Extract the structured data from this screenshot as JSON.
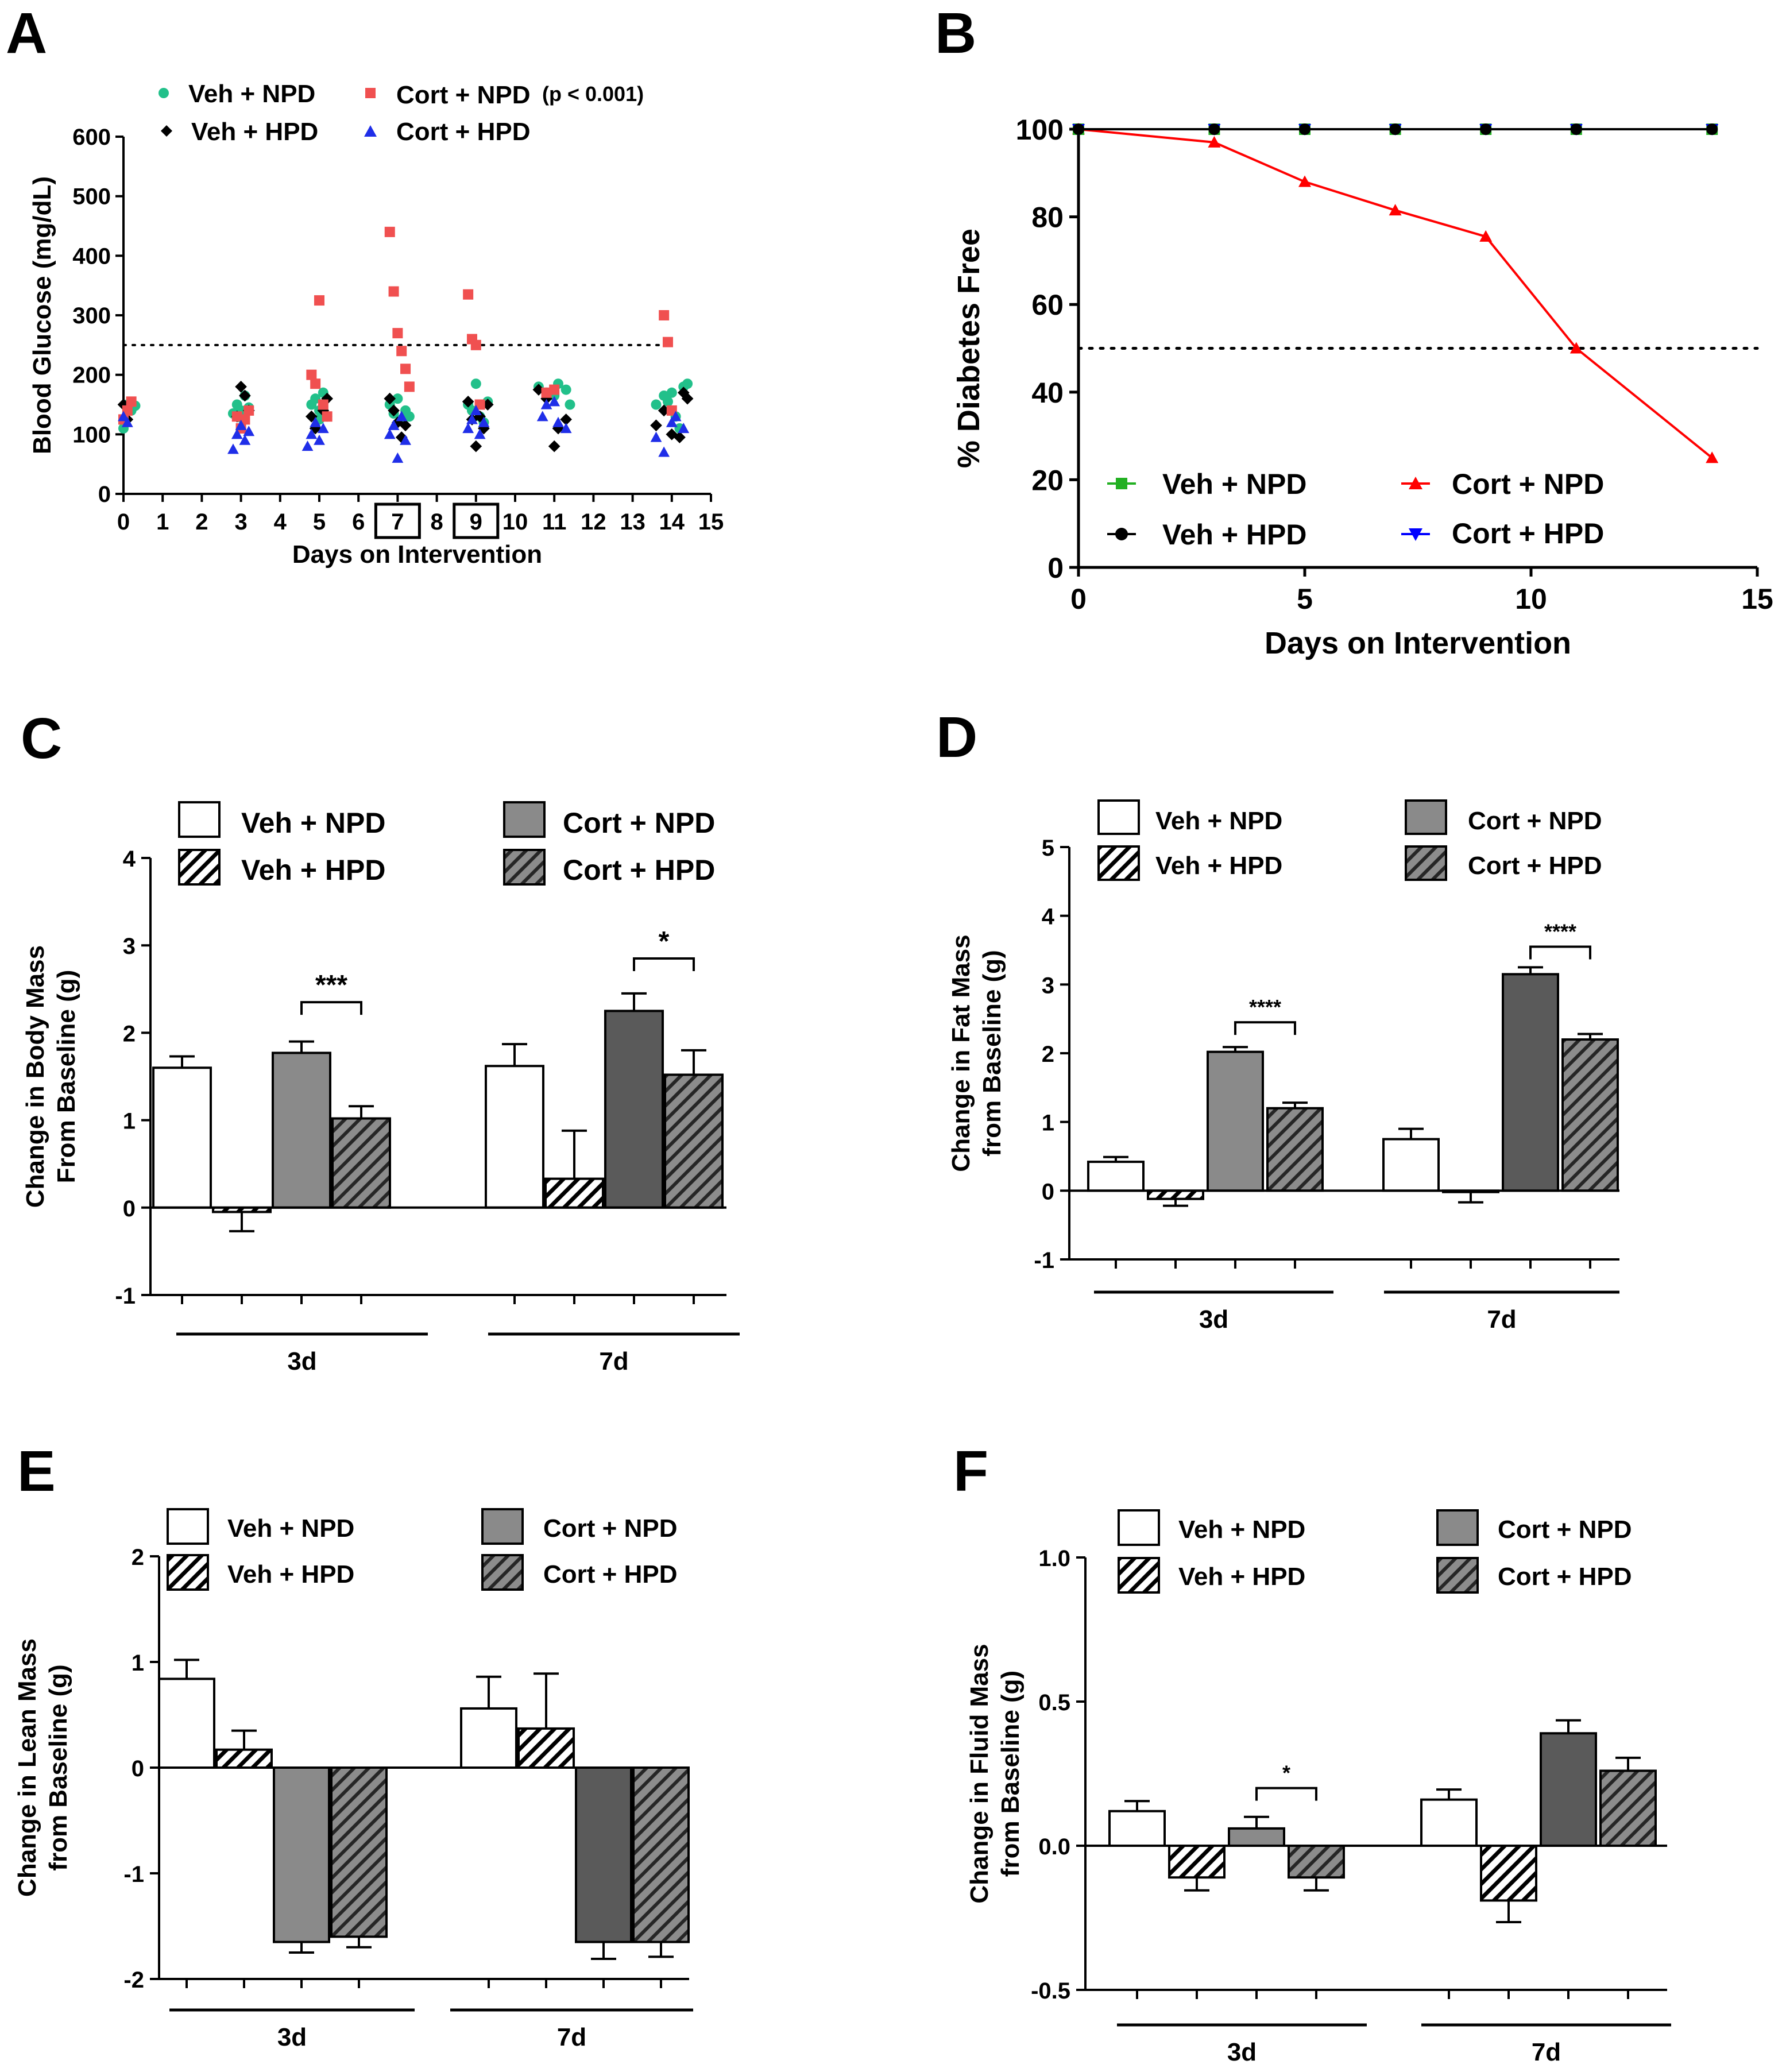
{
  "colors": {
    "veh_npd": "#22c08a",
    "veh_hpd": "#000000",
    "cort_npd": "#f05050",
    "cort_hpd": "#1f2ee8",
    "line_green": "#22b022",
    "line_red": "#ff0000",
    "line_blue": "#0000ff",
    "bar_cort_npd_3d": "#8a8a8a",
    "bar_cort_npd_7d": "#5a5a5a",
    "bar_cort_hpd": "#7a7a7a"
  },
  "legends": {
    "veh_npd": "Veh + NPD",
    "veh_hpd": "Veh + HPD",
    "cort_npd": "Cort + NPD",
    "cort_hpd": "Cort + HPD",
    "p_note": "(p < 0.001)"
  },
  "chart_data": [
    {
      "id": "A",
      "panel_label": "A",
      "type": "scatter",
      "xlabel": "Days on Intervention",
      "ylabel": "Blood Glucose (mg/dL)",
      "xlim": [
        0,
        15
      ],
      "ylim": [
        0,
        600
      ],
      "xticks": [
        "0",
        "1",
        "2",
        "3",
        "4",
        "5",
        "6",
        "7",
        "8",
        "9",
        "10",
        "11",
        "12",
        "13",
        "14",
        "15"
      ],
      "yticks": [
        "0",
        "100",
        "200",
        "300",
        "400",
        "500",
        "600"
      ],
      "boxed_ticks": [
        "7",
        "9"
      ],
      "threshold": 250,
      "series": [
        {
          "name": "Veh + NPD",
          "marker": "circle",
          "points": [
            [
              0,
              110
            ],
            [
              0.05,
              125
            ],
            [
              0.1,
              150
            ],
            [
              0.2,
              140
            ],
            [
              0.3,
              148
            ],
            [
              2.8,
              135
            ],
            [
              2.9,
              150
            ],
            [
              3,
              140
            ],
            [
              3.1,
              165
            ],
            [
              3.2,
              145
            ],
            [
              3,
              128
            ],
            [
              4.8,
              150
            ],
            [
              4.9,
              160
            ],
            [
              5,
              140
            ],
            [
              5.1,
              170
            ],
            [
              5.2,
              130
            ],
            [
              5,
              125
            ],
            [
              6.8,
              150
            ],
            [
              6.9,
              135
            ],
            [
              7,
              160
            ],
            [
              7.1,
              125
            ],
            [
              7.2,
              140
            ],
            [
              7.3,
              130
            ],
            [
              8.8,
              150
            ],
            [
              8.9,
              140
            ],
            [
              9,
              185
            ],
            [
              9.1,
              130
            ],
            [
              9.2,
              120
            ],
            [
              9.3,
              155
            ],
            [
              10.6,
              180
            ],
            [
              10.8,
              170
            ],
            [
              11,
              165
            ],
            [
              11.1,
              185
            ],
            [
              11.3,
              175
            ],
            [
              11.4,
              150
            ],
            [
              13.6,
              150
            ],
            [
              13.8,
              165
            ],
            [
              14,
              170
            ],
            [
              14.1,
              130
            ],
            [
              14.3,
              180
            ],
            [
              14.4,
              185
            ],
            [
              13.9,
              155
            ],
            [
              14.2,
              110
            ]
          ]
        },
        {
          "name": "Veh + HPD",
          "marker": "diamond",
          "points": [
            [
              0,
              150
            ],
            [
              0.1,
              125
            ],
            [
              2.9,
              130
            ],
            [
              3,
              180
            ],
            [
              3.1,
              165
            ],
            [
              3.2,
              140
            ],
            [
              4.8,
              130
            ],
            [
              4.9,
              110
            ],
            [
              5.1,
              140
            ],
            [
              5.2,
              160
            ],
            [
              6.8,
              160
            ],
            [
              6.9,
              140
            ],
            [
              7,
              120
            ],
            [
              7.1,
              95
            ],
            [
              7.2,
              115
            ],
            [
              8.8,
              155
            ],
            [
              8.9,
              125
            ],
            [
              9,
              80
            ],
            [
              9.1,
              130
            ],
            [
              9.2,
              110
            ],
            [
              9.3,
              150
            ],
            [
              10.6,
              175
            ],
            [
              10.8,
              160
            ],
            [
              11,
              80
            ],
            [
              11.1,
              110
            ],
            [
              11.3,
              125
            ],
            [
              13.6,
              115
            ],
            [
              13.8,
              140
            ],
            [
              14,
              100
            ],
            [
              14.2,
              95
            ],
            [
              14.3,
              170
            ],
            [
              14.4,
              160
            ]
          ]
        },
        {
          "name": "Cort + NPD",
          "marker": "square",
          "points": [
            [
              0,
              125
            ],
            [
              0.1,
              140
            ],
            [
              0.2,
              155
            ],
            [
              2.9,
              130
            ],
            [
              3,
              110
            ],
            [
              3.1,
              125
            ],
            [
              3.2,
              140
            ],
            [
              4.8,
              200
            ],
            [
              4.9,
              185
            ],
            [
              5,
              325
            ],
            [
              5.1,
              150
            ],
            [
              5.2,
              130
            ],
            [
              6.8,
              440
            ],
            [
              6.9,
              340
            ],
            [
              7,
              270
            ],
            [
              7.1,
              240
            ],
            [
              7.2,
              210
            ],
            [
              7.3,
              180
            ],
            [
              8.8,
              335
            ],
            [
              8.9,
              260
            ],
            [
              9,
              250
            ],
            [
              9.1,
              150
            ],
            [
              10.8,
              170
            ],
            [
              11,
              175
            ],
            [
              13.8,
              300
            ],
            [
              13.9,
              255
            ],
            [
              14,
              140
            ]
          ]
        },
        {
          "name": "Cort + HPD",
          "marker": "triangle",
          "points": [
            [
              0,
              130
            ],
            [
              0.1,
              120
            ],
            [
              2.8,
              75
            ],
            [
              2.9,
              100
            ],
            [
              3,
              115
            ],
            [
              3.1,
              90
            ],
            [
              3.2,
              105
            ],
            [
              4.7,
              80
            ],
            [
              4.8,
              100
            ],
            [
              4.9,
              120
            ],
            [
              5,
              90
            ],
            [
              5.1,
              110
            ],
            [
              6.8,
              100
            ],
            [
              6.9,
              115
            ],
            [
              7,
              60
            ],
            [
              7.1,
              130
            ],
            [
              7.2,
              90
            ],
            [
              8.8,
              110
            ],
            [
              8.9,
              125
            ],
            [
              9,
              140
            ],
            [
              9.1,
              100
            ],
            [
              9.2,
              120
            ],
            [
              10.7,
              130
            ],
            [
              10.8,
              150
            ],
            [
              11,
              155
            ],
            [
              11.1,
              120
            ],
            [
              11.3,
              110
            ],
            [
              13.6,
              95
            ],
            [
              13.8,
              70
            ],
            [
              14,
              120
            ],
            [
              14.1,
              130
            ],
            [
              14.3,
              110
            ]
          ]
        }
      ]
    },
    {
      "id": "B",
      "panel_label": "B",
      "type": "line",
      "xlabel": "Days on Intervention",
      "ylabel": "%  Diabetes  Free",
      "xlim": [
        0,
        15
      ],
      "ylim": [
        0,
        100
      ],
      "xticks": [
        "0",
        "5",
        "10",
        "15"
      ],
      "yticks": [
        "0",
        "20",
        "40",
        "60",
        "80",
        "100"
      ],
      "threshold": 50,
      "x": [
        0,
        3,
        5,
        7,
        9,
        11,
        14
      ],
      "series": [
        {
          "name": "Veh + NPD",
          "marker": "square",
          "values": [
            100,
            100,
            100,
            100,
            100,
            100,
            100
          ]
        },
        {
          "name": "Veh + HPD",
          "marker": "circle",
          "values": [
            100,
            100,
            100,
            100,
            100,
            100,
            100
          ]
        },
        {
          "name": "Cort + NPD",
          "marker": "triangle",
          "values": [
            100,
            97,
            88,
            81.5,
            75.5,
            50,
            25
          ]
        },
        {
          "name": "Cort + HPD",
          "marker": "triangle-down",
          "values": [
            100,
            100,
            100,
            100,
            100,
            100,
            100
          ]
        }
      ]
    },
    {
      "id": "C",
      "panel_label": "C",
      "type": "bar",
      "ylabel_lines": [
        "Change in Body Mass",
        "From Baseline (g)"
      ],
      "ylim": [
        -1,
        4
      ],
      "yticks": [
        "-1",
        "0",
        "1",
        "2",
        "3",
        "4"
      ],
      "categories": [
        "3d",
        "7d"
      ],
      "series": [
        {
          "name": "Veh + NPD",
          "values": [
            1.6,
            1.62
          ],
          "errors": [
            0.13,
            0.25
          ]
        },
        {
          "name": "Veh + HPD",
          "values": [
            -0.05,
            0.33
          ],
          "errors": [
            0.22,
            0.55
          ]
        },
        {
          "name": "Cort + NPD",
          "values": [
            1.77,
            2.25
          ],
          "errors": [
            0.13,
            0.2
          ]
        },
        {
          "name": "Cort + HPD",
          "values": [
            1.02,
            1.52
          ],
          "errors": [
            0.14,
            0.28
          ]
        }
      ],
      "significance": [
        {
          "group": "3d",
          "label": "***",
          "y": 2.35
        },
        {
          "group": "7d",
          "label": "*",
          "y": 2.85
        }
      ]
    },
    {
      "id": "D",
      "panel_label": "D",
      "type": "bar",
      "ylabel_lines": [
        "Change in Fat Mass",
        "from  Baseline (g)"
      ],
      "ylim": [
        -1,
        5
      ],
      "yticks": [
        "-1",
        "0",
        "1",
        "2",
        "3",
        "4",
        "5"
      ],
      "categories": [
        "3d",
        "7d"
      ],
      "series": [
        {
          "name": "Veh + NPD",
          "values": [
            0.42,
            0.75
          ],
          "errors": [
            0.07,
            0.15
          ]
        },
        {
          "name": "Veh + HPD",
          "values": [
            -0.12,
            -0.02
          ],
          "errors": [
            0.1,
            0.15
          ]
        },
        {
          "name": "Cort + NPD",
          "values": [
            2.02,
            3.15
          ],
          "errors": [
            0.07,
            0.1
          ]
        },
        {
          "name": "Cort + HPD",
          "values": [
            1.2,
            2.2
          ],
          "errors": [
            0.08,
            0.08
          ]
        }
      ],
      "significance": [
        {
          "group": "3d",
          "label": "****",
          "y": 2.45
        },
        {
          "group": "7d",
          "label": "****",
          "y": 3.55
        }
      ]
    },
    {
      "id": "E",
      "panel_label": "E",
      "type": "bar",
      "ylabel_lines": [
        "Change in Lean Mass",
        "from  Baseline (g)"
      ],
      "ylim": [
        -2,
        2
      ],
      "yticks": [
        "-2",
        "-1",
        "0",
        "1",
        "2"
      ],
      "categories": [
        "3d",
        "7d"
      ],
      "series": [
        {
          "name": "Veh + NPD",
          "values": [
            0.84,
            0.56
          ],
          "errors": [
            0.18,
            0.3
          ]
        },
        {
          "name": "Veh + HPD",
          "values": [
            0.17,
            0.37
          ],
          "errors": [
            0.18,
            0.52
          ]
        },
        {
          "name": "Cort + NPD",
          "values": [
            -1.65,
            -1.65
          ],
          "errors": [
            0.1,
            0.16
          ]
        },
        {
          "name": "Cort + HPD",
          "values": [
            -1.6,
            -1.65
          ],
          "errors": [
            0.1,
            0.14
          ]
        }
      ],
      "significance": []
    },
    {
      "id": "F",
      "panel_label": "F",
      "type": "bar",
      "ylabel_lines": [
        "Change in Fluid Mass",
        "from  Baseline (g)"
      ],
      "ylim": [
        -0.5,
        1.0
      ],
      "yticks": [
        "-0.5",
        "0.0",
        "0.5",
        "1.0"
      ],
      "categories": [
        "3d",
        "7d"
      ],
      "series": [
        {
          "name": "Veh + NPD",
          "values": [
            0.12,
            0.16
          ],
          "errors": [
            0.035,
            0.035
          ]
        },
        {
          "name": "Veh + HPD",
          "values": [
            -0.11,
            -0.19
          ],
          "errors": [
            0.045,
            0.075
          ]
        },
        {
          "name": "Cort + NPD",
          "values": [
            0.06,
            0.39
          ],
          "errors": [
            0.04,
            0.045
          ]
        },
        {
          "name": "Cort + HPD",
          "values": [
            -0.11,
            0.26
          ],
          "errors": [
            0.045,
            0.045
          ]
        }
      ],
      "significance": [
        {
          "group": "3d",
          "label": "*",
          "y": 0.2
        }
      ]
    }
  ]
}
